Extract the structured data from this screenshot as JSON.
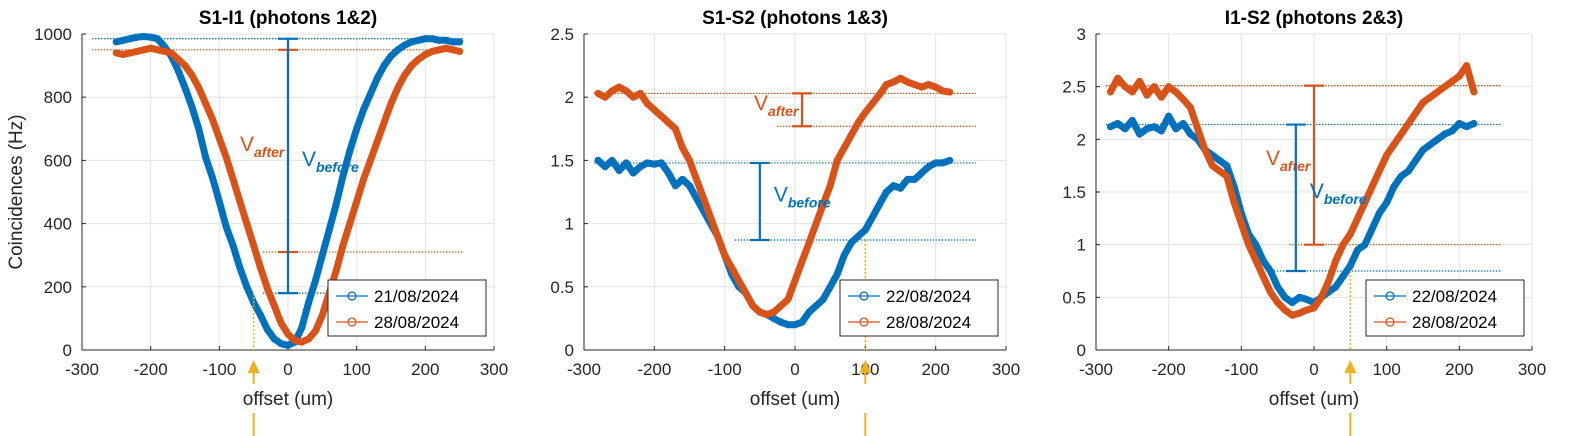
{
  "chart_data": [
    {
      "type": "line",
      "title": "S1-I1 (photons 1&2)",
      "xlabel": "offset (um)",
      "ylabel": "Coincidences (Hz)",
      "xlim": [
        -300,
        300
      ],
      "ylim": [
        0,
        1000
      ],
      "xticks": [
        "-300",
        "-200",
        "-100",
        "0",
        "100",
        "200",
        "300"
      ],
      "yticks": [
        "0",
        "200",
        "400",
        "600",
        "800",
        "1000"
      ],
      "grid": true,
      "legend_position": "bottom-right",
      "series": [
        {
          "name": "21/08/2024",
          "color": "#0072BD",
          "x": [
            -250,
            -240,
            -230,
            -220,
            -210,
            -200,
            -190,
            -180,
            -170,
            -160,
            -150,
            -140,
            -130,
            -120,
            -110,
            -100,
            -90,
            -80,
            -70,
            -60,
            -50,
            -40,
            -30,
            -20,
            -10,
            0,
            10,
            20,
            30,
            40,
            50,
            60,
            70,
            80,
            90,
            100,
            110,
            120,
            130,
            140,
            150,
            160,
            170,
            180,
            190,
            200,
            210,
            220,
            230,
            240,
            250
          ],
          "y": [
            975,
            980,
            985,
            990,
            992,
            990,
            985,
            960,
            930,
            885,
            830,
            770,
            700,
            610,
            545,
            470,
            390,
            330,
            260,
            200,
            150,
            110,
            65,
            35,
            20,
            15,
            25,
            70,
            150,
            220,
            300,
            380,
            460,
            550,
            630,
            700,
            760,
            810,
            860,
            900,
            930,
            950,
            965,
            975,
            980,
            985,
            985,
            980,
            980,
            975,
            975
          ]
        },
        {
          "name": "28/08/2024",
          "color": "#D95319",
          "x": [
            -250,
            -240,
            -230,
            -220,
            -210,
            -200,
            -190,
            -180,
            -170,
            -160,
            -150,
            -140,
            -130,
            -120,
            -110,
            -100,
            -90,
            -80,
            -70,
            -60,
            -50,
            -40,
            -30,
            -20,
            -10,
            0,
            10,
            20,
            30,
            40,
            50,
            60,
            70,
            80,
            90,
            100,
            110,
            120,
            130,
            140,
            150,
            160,
            170,
            180,
            190,
            200,
            210,
            220,
            230,
            240,
            250
          ],
          "y": [
            940,
            935,
            940,
            945,
            950,
            955,
            950,
            945,
            940,
            920,
            900,
            870,
            830,
            780,
            730,
            670,
            610,
            540,
            470,
            400,
            330,
            260,
            195,
            140,
            85,
            50,
            30,
            25,
            35,
            60,
            110,
            180,
            250,
            330,
            400,
            470,
            540,
            600,
            660,
            720,
            780,
            830,
            870,
            900,
            920,
            935,
            945,
            950,
            955,
            950,
            945
          ]
        }
      ],
      "annotations": [
        {
          "text": "V",
          "subscript": "after",
          "color": "#D95319",
          "x": 0,
          "y_top": 950,
          "y_bottom": 310
        },
        {
          "text": "V",
          "subscript": "before",
          "color": "#0072BD",
          "x": 0,
          "y_top": 985,
          "y_bottom": 180
        }
      ],
      "marker_arrow_x": -50
    },
    {
      "type": "line",
      "title": "S1-S2 (photons 1&3)",
      "xlabel": "offset (um)",
      "ylabel": "",
      "xlim": [
        -300,
        300
      ],
      "ylim": [
        0,
        2.5
      ],
      "xticks": [
        "-300",
        "-200",
        "-100",
        "0",
        "100",
        "200",
        "300"
      ],
      "yticks": [
        "0",
        "0.5",
        "1",
        "1.5",
        "2",
        "2.5"
      ],
      "grid": true,
      "legend_position": "bottom-right",
      "series": [
        {
          "name": "22/08/2024",
          "color": "#0072BD",
          "x": [
            -280,
            -270,
            -260,
            -250,
            -240,
            -230,
            -220,
            -210,
            -200,
            -190,
            -180,
            -170,
            -160,
            -150,
            -140,
            -130,
            -120,
            -110,
            -100,
            -90,
            -80,
            -70,
            -60,
            -50,
            -40,
            -30,
            -20,
            -10,
            0,
            10,
            20,
            30,
            40,
            50,
            60,
            70,
            80,
            90,
            100,
            110,
            120,
            130,
            140,
            150,
            160,
            170,
            180,
            190,
            200,
            210,
            220
          ],
          "y": [
            1.5,
            1.45,
            1.5,
            1.42,
            1.48,
            1.4,
            1.45,
            1.48,
            1.47,
            1.48,
            1.4,
            1.3,
            1.35,
            1.3,
            1.2,
            1.1,
            1.0,
            0.9,
            0.75,
            0.6,
            0.5,
            0.45,
            0.35,
            0.3,
            0.28,
            0.25,
            0.22,
            0.2,
            0.2,
            0.22,
            0.3,
            0.35,
            0.4,
            0.5,
            0.6,
            0.75,
            0.85,
            0.9,
            0.95,
            1.05,
            1.15,
            1.25,
            1.3,
            1.28,
            1.35,
            1.35,
            1.4,
            1.45,
            1.48,
            1.48,
            1.5
          ]
        },
        {
          "name": "28/08/2024",
          "color": "#D95319",
          "x": [
            -280,
            -270,
            -260,
            -250,
            -240,
            -230,
            -220,
            -210,
            -200,
            -190,
            -180,
            -170,
            -160,
            -150,
            -140,
            -130,
            -120,
            -110,
            -100,
            -90,
            -80,
            -70,
            -60,
            -50,
            -40,
            -30,
            -20,
            -10,
            0,
            10,
            20,
            30,
            40,
            50,
            60,
            70,
            80,
            90,
            100,
            110,
            120,
            130,
            140,
            150,
            160,
            170,
            180,
            190,
            200,
            210,
            220
          ],
          "y": [
            2.03,
            2.0,
            2.05,
            2.08,
            2.05,
            2.0,
            2.03,
            1.95,
            1.9,
            1.85,
            1.8,
            1.75,
            1.6,
            1.5,
            1.35,
            1.2,
            1.05,
            0.9,
            0.75,
            0.65,
            0.55,
            0.45,
            0.35,
            0.3,
            0.28,
            0.3,
            0.35,
            0.4,
            0.55,
            0.7,
            0.85,
            1.0,
            1.15,
            1.3,
            1.5,
            1.6,
            1.7,
            1.8,
            1.88,
            1.95,
            2.02,
            2.1,
            2.12,
            2.15,
            2.12,
            2.1,
            2.08,
            2.1,
            2.08,
            2.05,
            2.04
          ]
        }
      ],
      "annotations": [
        {
          "text": "V",
          "subscript": "after",
          "color": "#D95319",
          "x": 10,
          "y_top": 2.03,
          "y_bottom": 1.77
        },
        {
          "text": "V",
          "subscript": "before",
          "color": "#0072BD",
          "x": -50,
          "y_top": 1.48,
          "y_bottom": 0.87
        }
      ],
      "marker_arrow_x": 100
    },
    {
      "type": "line",
      "title": "I1-S2 (photons 2&3)",
      "xlabel": "offset (um)",
      "ylabel": "",
      "xlim": [
        -300,
        300
      ],
      "ylim": [
        0,
        3
      ],
      "xticks": [
        "-300",
        "-200",
        "-100",
        "0",
        "100",
        "200",
        "300"
      ],
      "yticks": [
        "0",
        "0.5",
        "1",
        "1.5",
        "2",
        "2.5",
        "3"
      ],
      "grid": true,
      "legend_position": "bottom-right",
      "series": [
        {
          "name": "22/08/2024",
          "color": "#0072BD",
          "x": [
            -280,
            -270,
            -260,
            -250,
            -240,
            -230,
            -220,
            -210,
            -200,
            -190,
            -180,
            -170,
            -160,
            -150,
            -140,
            -130,
            -120,
            -110,
            -100,
            -90,
            -80,
            -70,
            -60,
            -50,
            -40,
            -30,
            -20,
            -10,
            0,
            10,
            20,
            30,
            40,
            50,
            60,
            70,
            80,
            90,
            100,
            110,
            120,
            130,
            140,
            150,
            160,
            170,
            180,
            190,
            200,
            210,
            220
          ],
          "y": [
            2.12,
            2.15,
            2.1,
            2.18,
            2.05,
            2.1,
            2.12,
            2.08,
            2.22,
            2.1,
            2.15,
            2.05,
            2.0,
            1.9,
            1.85,
            1.8,
            1.75,
            1.55,
            1.3,
            1.1,
            1.0,
            0.85,
            0.75,
            0.6,
            0.5,
            0.45,
            0.5,
            0.48,
            0.45,
            0.5,
            0.55,
            0.6,
            0.7,
            0.8,
            0.95,
            1.0,
            1.15,
            1.3,
            1.4,
            1.55,
            1.65,
            1.7,
            1.8,
            1.9,
            1.95,
            2.0,
            2.05,
            2.08,
            2.15,
            2.12,
            2.15
          ]
        },
        {
          "name": "28/08/2024",
          "color": "#D95319",
          "x": [
            -280,
            -270,
            -260,
            -250,
            -240,
            -230,
            -220,
            -210,
            -200,
            -190,
            -180,
            -170,
            -160,
            -150,
            -140,
            -130,
            -120,
            -110,
            -100,
            -90,
            -80,
            -70,
            -60,
            -50,
            -40,
            -30,
            -20,
            -10,
            0,
            10,
            20,
            30,
            40,
            50,
            60,
            70,
            80,
            90,
            100,
            110,
            120,
            130,
            140,
            150,
            160,
            170,
            180,
            190,
            200,
            210,
            220
          ],
          "y": [
            2.45,
            2.58,
            2.5,
            2.45,
            2.55,
            2.42,
            2.5,
            2.4,
            2.5,
            2.45,
            2.38,
            2.3,
            2.1,
            1.9,
            1.75,
            1.7,
            1.65,
            1.4,
            1.2,
            1.0,
            0.85,
            0.7,
            0.55,
            0.45,
            0.38,
            0.33,
            0.35,
            0.38,
            0.4,
            0.5,
            0.65,
            0.85,
            1.0,
            1.1,
            1.25,
            1.4,
            1.55,
            1.7,
            1.85,
            1.95,
            2.05,
            2.15,
            2.25,
            2.35,
            2.4,
            2.45,
            2.5,
            2.55,
            2.6,
            2.7,
            2.45
          ]
        }
      ],
      "annotations": [
        {
          "text": "V",
          "subscript": "after",
          "color": "#D95319",
          "x": 0,
          "y_top": 2.51,
          "y_bottom": 1.0
        },
        {
          "text": "V",
          "subscript": "before",
          "color": "#0072BD",
          "x": -25,
          "y_top": 2.14,
          "y_bottom": 0.75
        }
      ],
      "marker_arrow_x": 50
    }
  ]
}
